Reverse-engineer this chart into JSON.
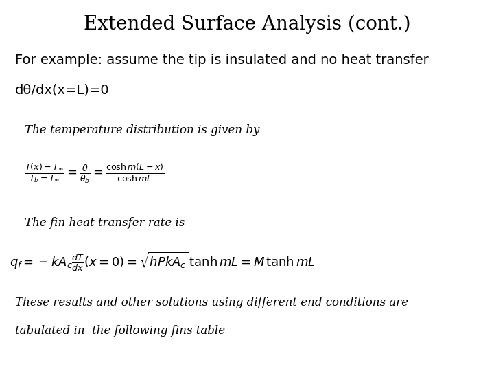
{
  "title": "Extended Surface Analysis (cont.)",
  "title_fontsize": 20,
  "bg_color": "#ffffff",
  "text_color": "#000000",
  "fig_width": 7.2,
  "fig_height": 5.4,
  "dpi": 100,
  "intro_text": "For example: assume the tip is insulated and no heat transfer",
  "intro_text2": "dθ/dx(x=L)=0",
  "line1": "The temperature distribution is given by",
  "line2": "The fin heat transfer rate is",
  "line3": "These results and other solutions using different end conditions are",
  "line4": "tabulated in  the following fins table"
}
